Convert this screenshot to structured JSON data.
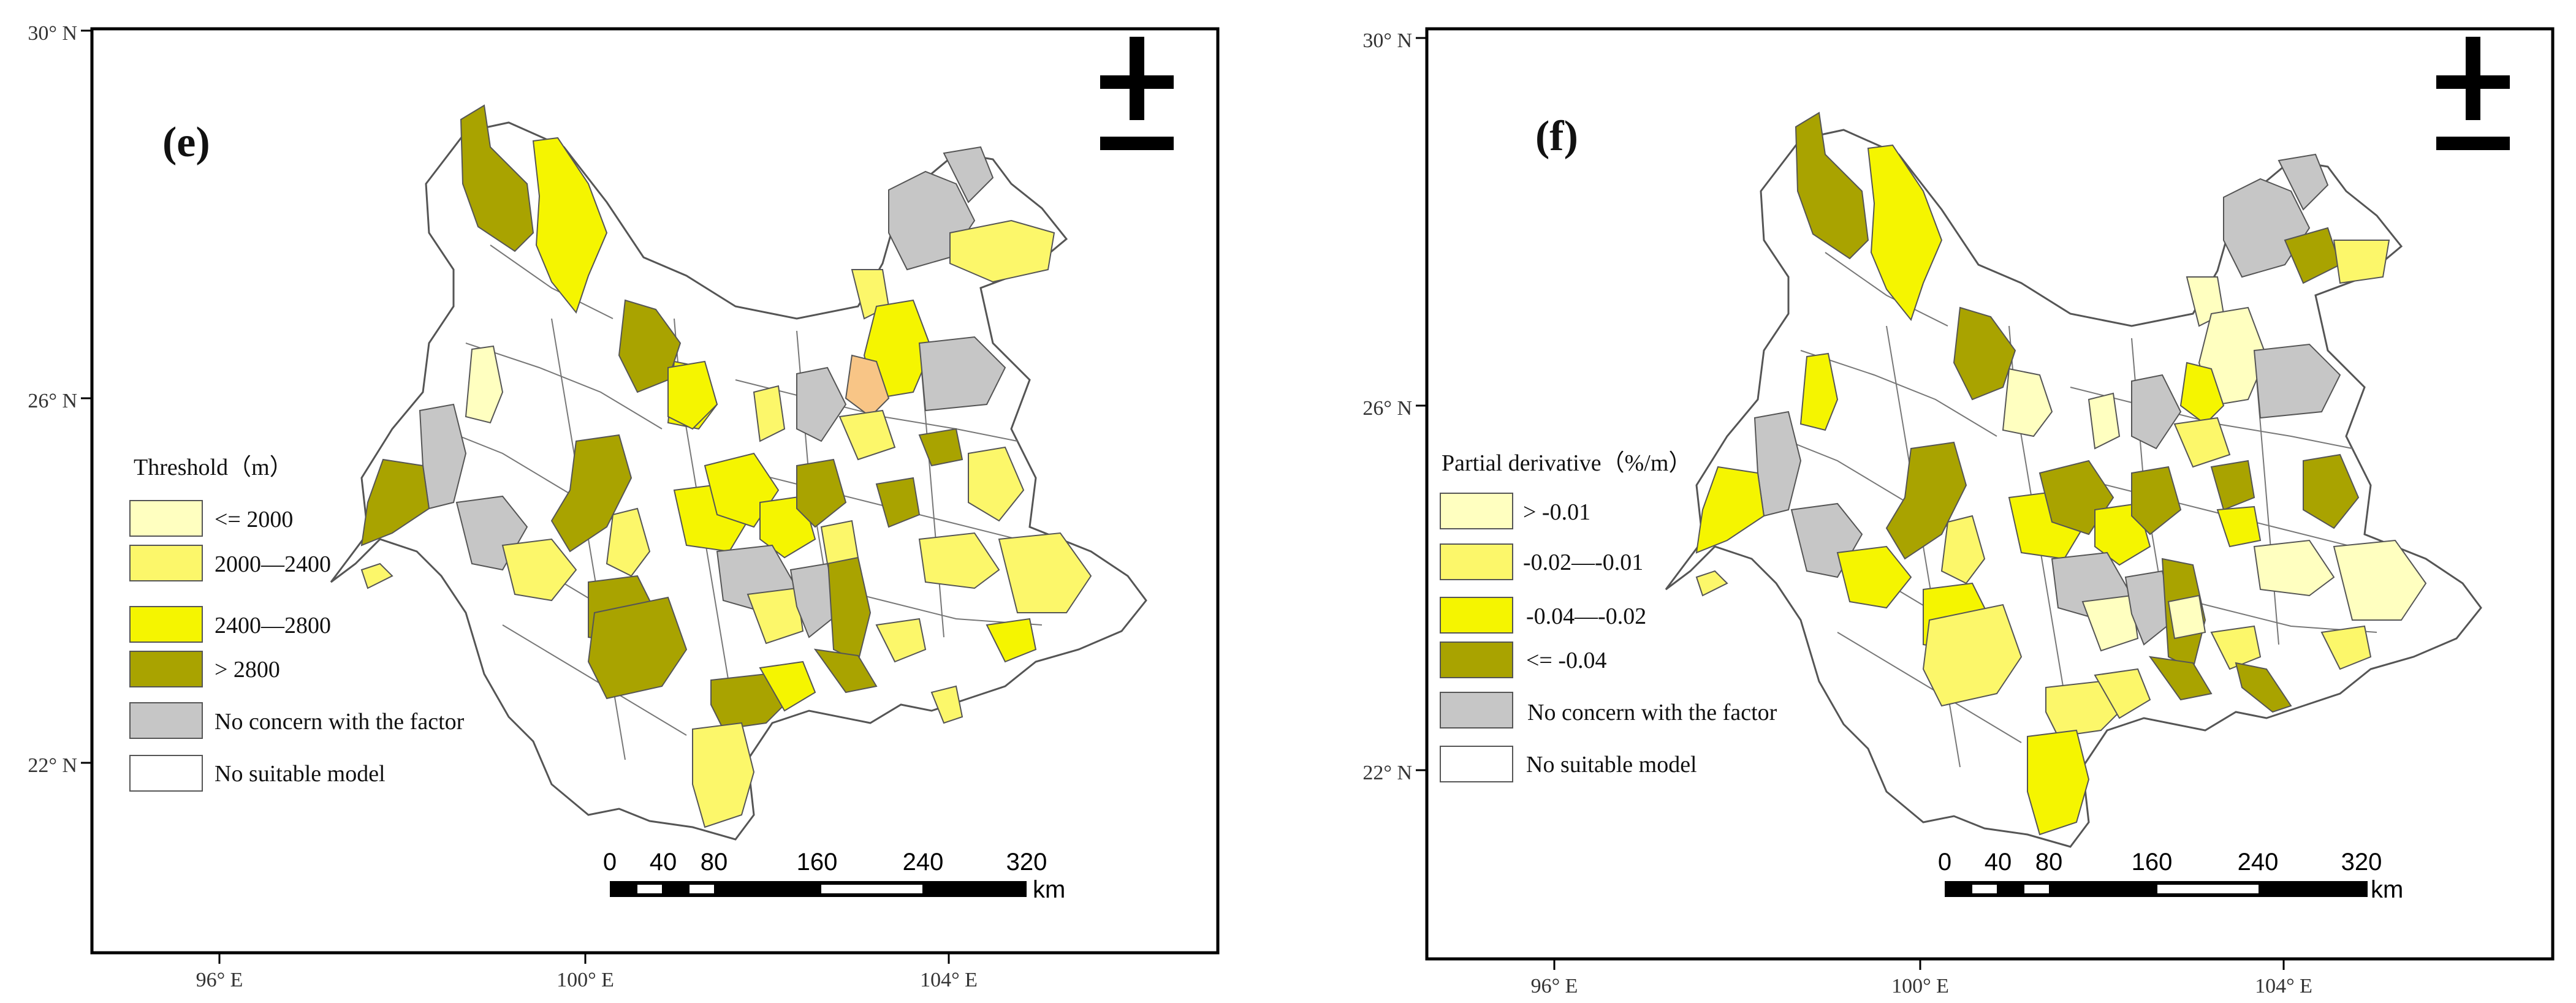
{
  "maps": [
    {
      "panel_label": "(e)",
      "legend_title": "Threshold（m）",
      "legend_items": [
        {
          "label": "<= 2000",
          "color": "#ffffc0"
        },
        {
          "label": "2000—2400",
          "color": "#fcf76a"
        },
        {
          "label": "2400—2800",
          "color": "#f5f500"
        },
        {
          "label": "> 2800",
          "color": "#a9a300"
        },
        {
          "label": "No concern with the factor",
          "color": "#c6c6c6"
        },
        {
          "label": "No suitable model",
          "color": "#ffffff"
        }
      ],
      "special_color": "#f8c586"
    },
    {
      "panel_label": "(f)",
      "legend_title": "Partial derivative（%/m）",
      "legend_items": [
        {
          "label": "> -0.01",
          "color": "#ffffc0"
        },
        {
          "label": "-0.02—-0.01",
          "color": "#fcf76a"
        },
        {
          "label": "-0.04—-0.02",
          "color": "#f5f500"
        },
        {
          "label": "<= -0.04",
          "color": "#a9a300"
        },
        {
          "label": "No concern with the factor",
          "color": "#c6c6c6"
        },
        {
          "label": "No suitable model",
          "color": "#ffffff"
        }
      ]
    }
  ],
  "lat_labels": [
    "30° N",
    "26° N",
    "22° N"
  ],
  "lon_labels": [
    "96° E",
    "100° E",
    "104° E"
  ],
  "scale_ticks": [
    "0",
    "40",
    "80",
    "160",
    "240",
    "320"
  ],
  "scale_unit": "km",
  "north_arrow_icon": "north-arrow-icon"
}
